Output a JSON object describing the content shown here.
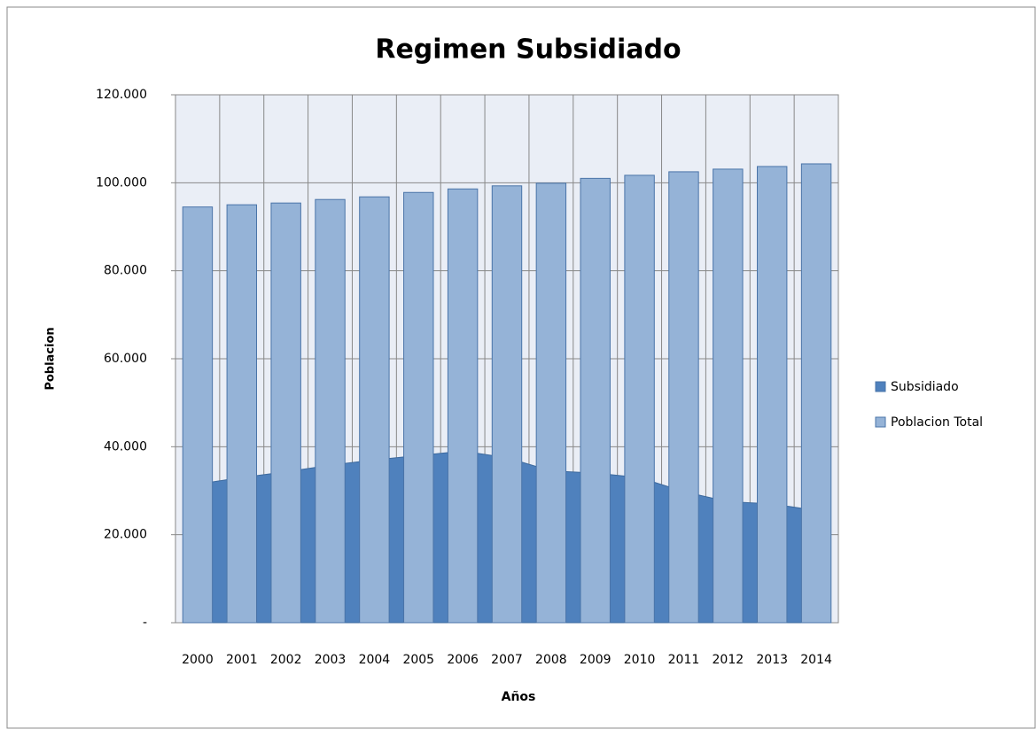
{
  "chart_data": {
    "type": "bar",
    "title": "Regimen Subsidiado",
    "x_label": "Años",
    "y_label": "Poblacion",
    "categories": [
      "2000",
      "2001",
      "2002",
      "2003",
      "2004",
      "2005",
      "2006",
      "2007",
      "2008",
      "2009",
      "2010",
      "2011",
      "2012",
      "2013",
      "2014"
    ],
    "series": [
      {
        "name": "Subsidiado",
        "type": "area",
        "color": "#4f81bd",
        "values": [
          31500,
          33000,
          34300,
          35800,
          37000,
          38000,
          39000,
          37500,
          34500,
          34000,
          33000,
          29800,
          27500,
          27000,
          25500
        ]
      },
      {
        "name": "Poblacion Total",
        "type": "bar",
        "color": "#95b3d7",
        "values": [
          94500,
          95000,
          95400,
          96200,
          96800,
          97800,
          98600,
          99300,
          99900,
          101000,
          101700,
          102500,
          103100,
          103700,
          104300
        ]
      }
    ],
    "ylim": [
      0,
      120000
    ],
    "yticks": [
      {
        "value": 0,
        "label": "-"
      },
      {
        "value": 20000,
        "label": "20.000"
      },
      {
        "value": 40000,
        "label": "40.000"
      },
      {
        "value": 60000,
        "label": "60.000"
      },
      {
        "value": 80000,
        "label": "80.000"
      },
      {
        "value": 100000,
        "label": "100.000"
      },
      {
        "value": 120000,
        "label": "120.000"
      }
    ],
    "grid": true,
    "legend": "right"
  }
}
